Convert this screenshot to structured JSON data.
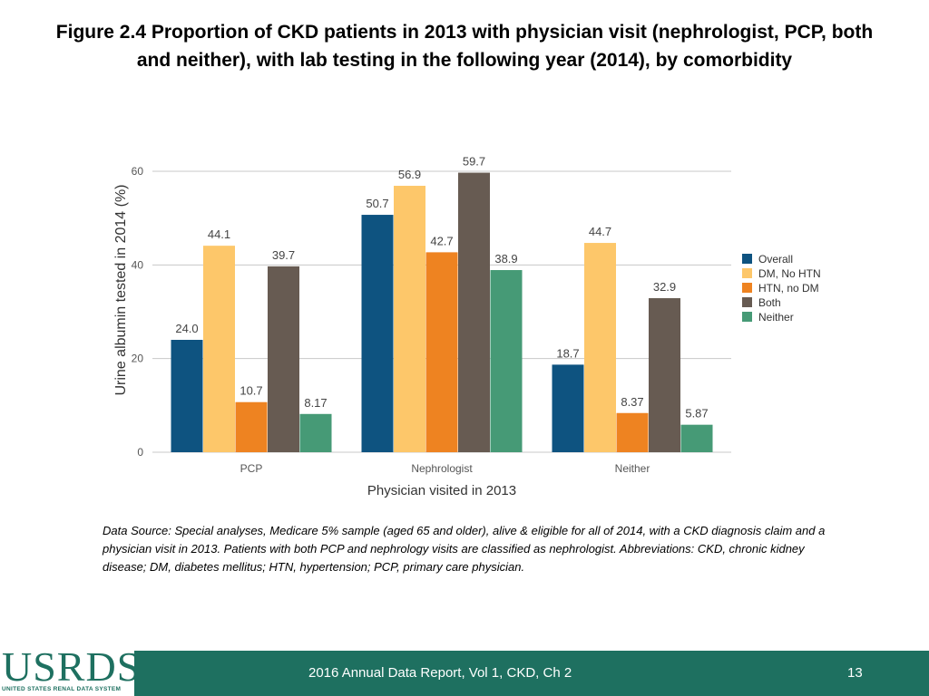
{
  "title": {
    "line1": "Figure 2.4  Proportion of CKD patients in 2013 with physician visit (nephrologist, PCP, both",
    "line2": "and neither), with lab testing in the following year (2014), by comorbidity"
  },
  "chart_data": {
    "type": "bar",
    "title": "",
    "xlabel": "Physician visited in 2013",
    "ylabel": "Urine albumin tested in 2014 (%)",
    "ylim": [
      0,
      60
    ],
    "yticks": [
      "0",
      "20",
      "40",
      "60"
    ],
    "grid": true,
    "categories": [
      "PCP",
      "Nephrologist",
      "Neither"
    ],
    "series": [
      {
        "name": "Overall",
        "color": "#0e5380",
        "values": [
          24.0,
          50.7,
          18.7
        ],
        "labels": [
          "24.0",
          "50.7",
          "18.7"
        ]
      },
      {
        "name": "DM, No HTN",
        "color": "#fdc76a",
        "values": [
          44.1,
          56.9,
          44.7
        ],
        "labels": [
          "44.1",
          "56.9",
          "44.7"
        ]
      },
      {
        "name": "HTN, no DM",
        "color": "#ee8321",
        "values": [
          10.7,
          42.7,
          8.37
        ],
        "labels": [
          "10.7",
          "42.7",
          "8.37"
        ]
      },
      {
        "name": "Both",
        "color": "#675b52",
        "values": [
          39.7,
          59.7,
          32.9
        ],
        "labels": [
          "39.7",
          "59.7",
          "32.9"
        ]
      },
      {
        "name": "Neither",
        "color": "#469a76",
        "values": [
          8.17,
          38.9,
          5.87
        ],
        "labels": [
          "8.17",
          "38.9",
          "5.87"
        ]
      }
    ],
    "legend": "right"
  },
  "note": "Data Source: Special analyses, Medicare 5% sample (aged 65 and older), alive & eligible for all of 2014, with a CKD diagnosis claim and a physician visit in 2013. Patients with both PCP and nephrology visits are classified as nephrologist. Abbreviations: CKD, chronic kidney disease; DM, diabetes mellitus; HTN, hypertension; PCP, primary care physician.",
  "footer": {
    "logo": "USRDS",
    "logo_sub": "UNITED STATES RENAL DATA SYSTEM",
    "text": "2016 Annual Data Report, Vol 1, CKD, Ch 2",
    "page": "13"
  }
}
